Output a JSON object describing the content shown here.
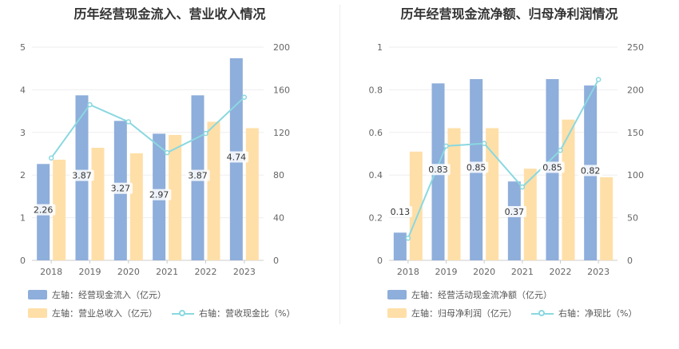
{
  "colors": {
    "bar_primary": "#8eaedb",
    "bar_secondary": "#ffdfa8",
    "line": "#8ad8e0",
    "label_bg": "#ffffff"
  },
  "chart_data": [
    {
      "type": "bar",
      "title": "历年经营现金流入、营业收入情况",
      "categories": [
        "2018",
        "2019",
        "2020",
        "2021",
        "2022",
        "2023"
      ],
      "series": [
        {
          "name": "左轴：经营现金流入（亿元）",
          "axis": "left",
          "kind": "bar",
          "values": [
            2.26,
            3.87,
            3.27,
            2.97,
            3.87,
            4.74
          ],
          "data_labels": [
            "2.26",
            "3.87",
            "3.27",
            "2.97",
            "3.87",
            "4.74"
          ]
        },
        {
          "name": "左轴：营业总收入（亿元）",
          "axis": "left",
          "kind": "bar",
          "values": [
            2.36,
            2.64,
            2.51,
            2.94,
            3.25,
            3.1
          ]
        },
        {
          "name": "右轴：营收现金比（%）",
          "axis": "right",
          "kind": "line",
          "values": [
            96,
            146,
            130,
            101,
            119,
            153
          ]
        }
      ],
      "y_left": {
        "range": [
          0,
          5
        ],
        "ticks": [
          "0",
          "1",
          "2",
          "3",
          "4",
          "5"
        ]
      },
      "y_right": {
        "range": [
          0,
          200
        ],
        "ticks": [
          "0",
          "40",
          "80",
          "120",
          "160",
          "200"
        ]
      },
      "legend_position": "bottom",
      "grid": true
    },
    {
      "type": "bar",
      "title": "历年经营现金流净额、归母净利润情况",
      "categories": [
        "2018",
        "2019",
        "2020",
        "2021",
        "2022",
        "2023"
      ],
      "series": [
        {
          "name": "左轴：经营活动现金流净额（亿元）",
          "axis": "left",
          "kind": "bar",
          "values": [
            0.13,
            0.83,
            0.85,
            0.37,
            0.85,
            0.82
          ],
          "data_labels": [
            "0.13",
            "0.83",
            "0.85",
            "0.37",
            "0.85",
            "0.82"
          ]
        },
        {
          "name": "左轴：归母净利润（亿元）",
          "axis": "left",
          "kind": "bar",
          "values": [
            0.51,
            0.62,
            0.62,
            0.43,
            0.66,
            0.39
          ]
        },
        {
          "name": "右轴：净现比（%）",
          "axis": "right",
          "kind": "line",
          "values": [
            26,
            134,
            137,
            86,
            129,
            212
          ]
        }
      ],
      "y_left": {
        "range": [
          0,
          1
        ],
        "ticks": [
          "0",
          "0.2",
          "0.4",
          "0.6",
          "0.8",
          "1"
        ]
      },
      "y_right": {
        "range": [
          0,
          250
        ],
        "ticks": [
          "0",
          "50",
          "100",
          "150",
          "200",
          "250"
        ]
      },
      "legend_position": "bottom",
      "grid": true
    }
  ]
}
